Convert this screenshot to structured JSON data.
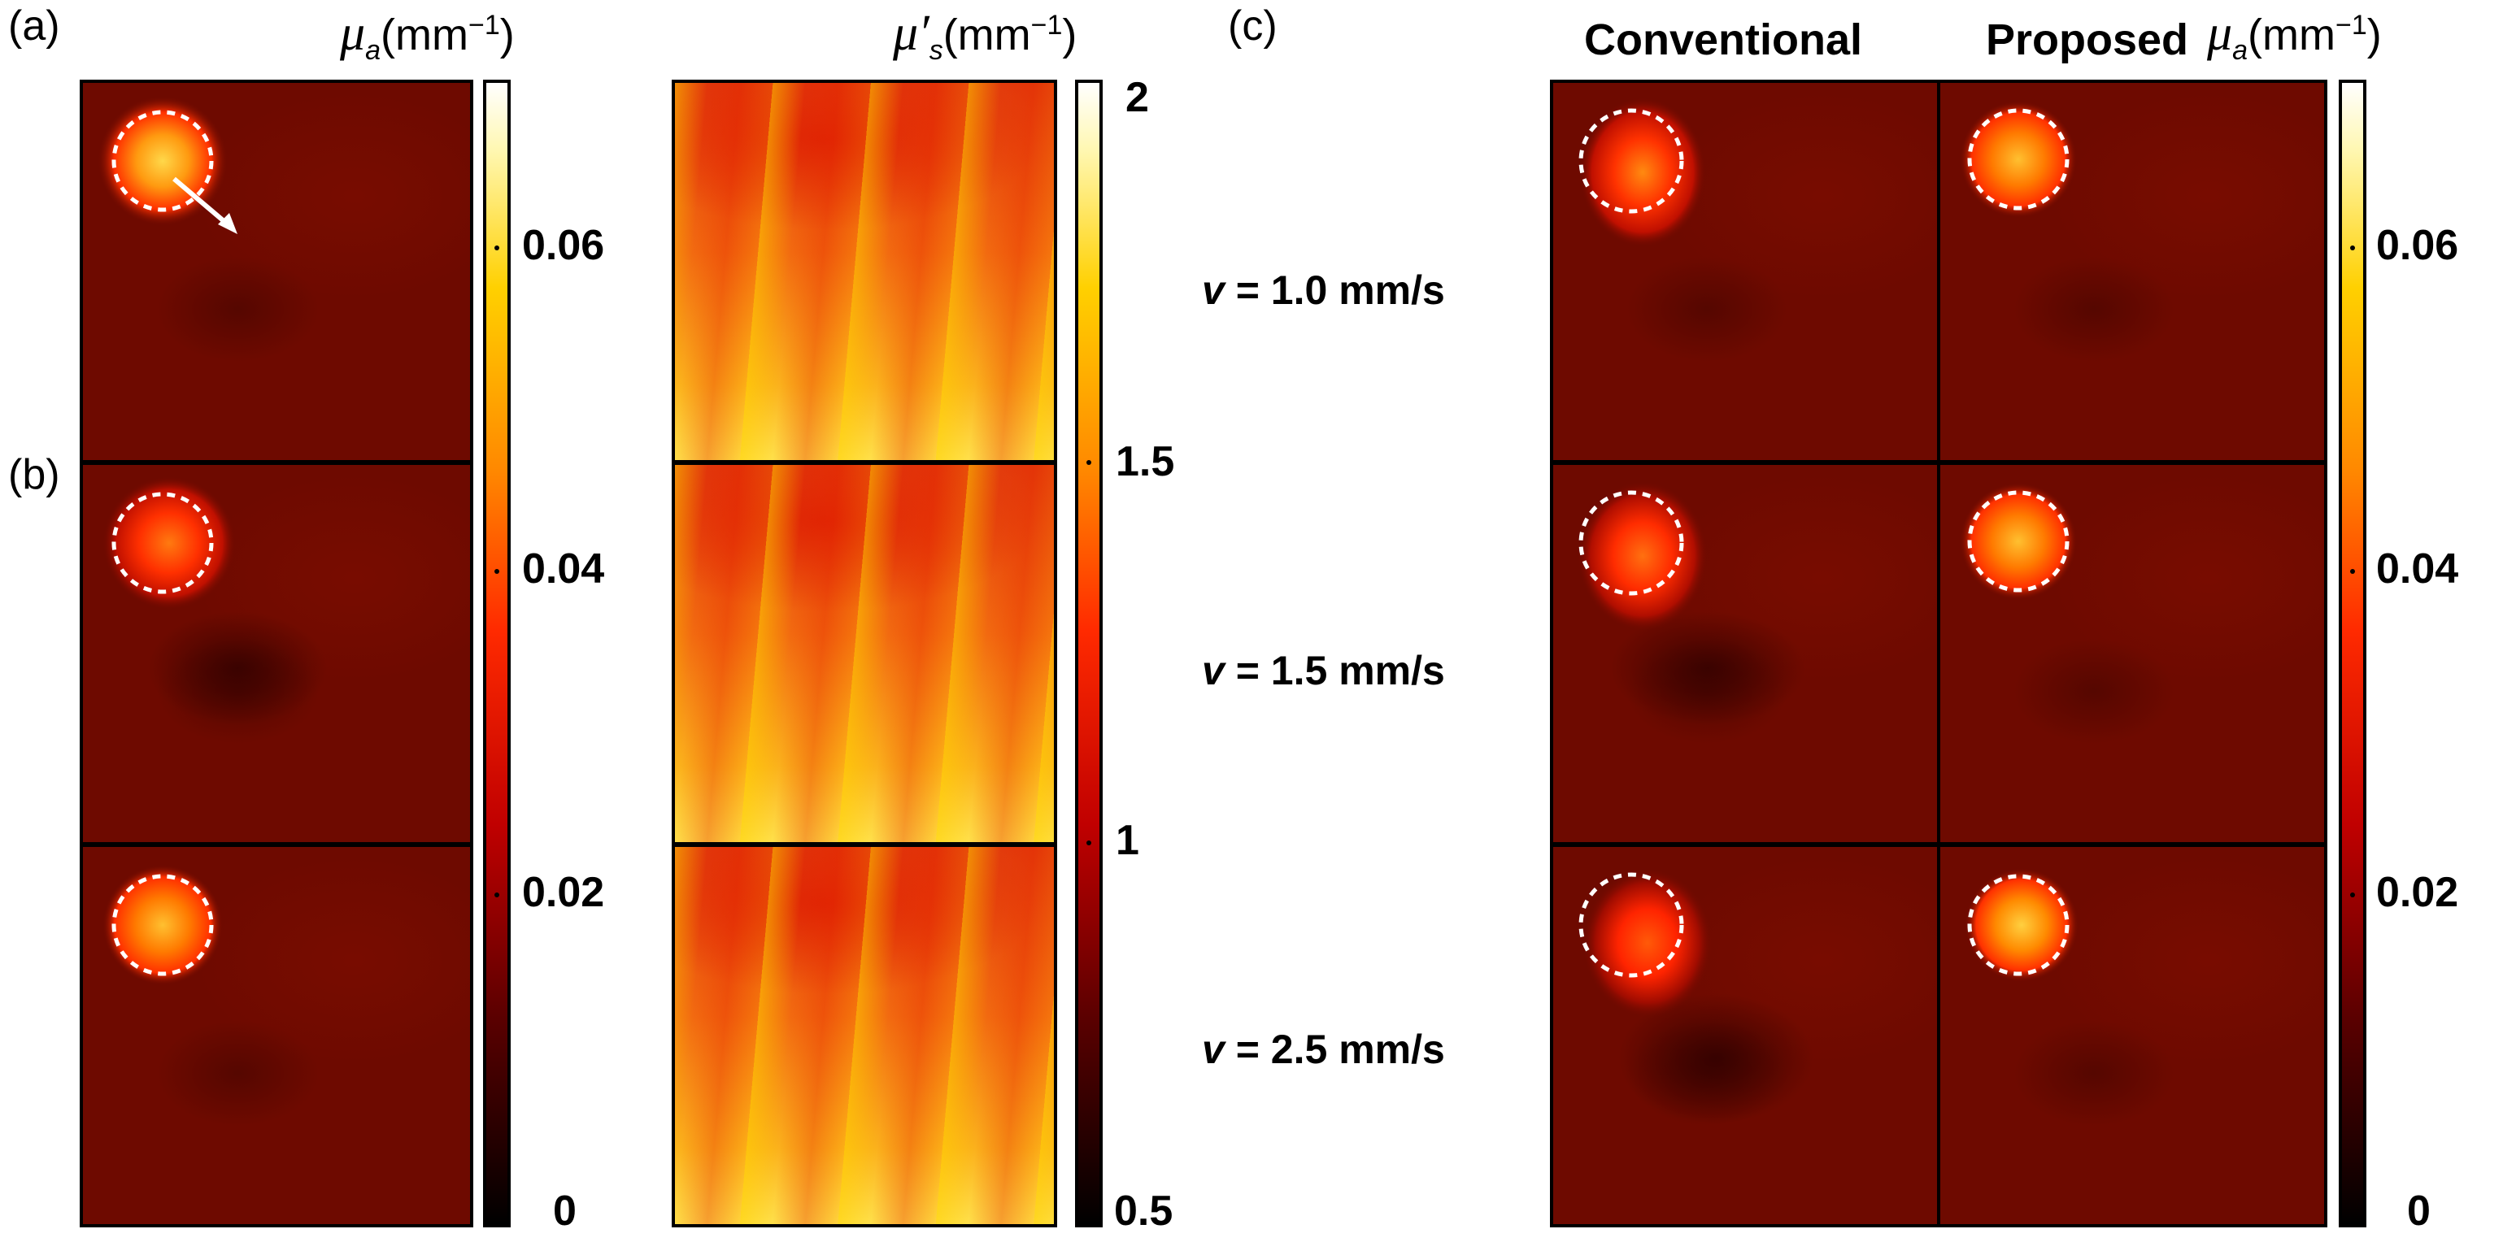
{
  "labels": {
    "a": "(a)",
    "b": "(b)",
    "c": "(c)"
  },
  "units": {
    "mua_symbol": "μ",
    "mua_sub": "a",
    "mus_symbol": "μ′",
    "mus_sub": "s",
    "unit_text": "(mm",
    "unit_exp": "−1",
    "unit_close": ")"
  },
  "colorbar_a": {
    "ticks": [
      "0.06",
      "0.04",
      "0.02",
      "0"
    ],
    "tick_values": [
      0.06,
      0.04,
      0.02,
      0
    ],
    "range": [
      0,
      0.07
    ]
  },
  "colorbar_ms": {
    "ticks": [
      "2",
      "1.5",
      "1",
      "0.5"
    ],
    "tick_values": [
      2,
      1.5,
      1,
      0.5
    ],
    "range": [
      0.5,
      2
    ]
  },
  "colorbar_c": {
    "ticks": [
      "0.06",
      "0.04",
      "0.02",
      "0"
    ],
    "tick_values": [
      0.06,
      0.04,
      0.02,
      0
    ],
    "range": [
      0,
      0.07
    ]
  },
  "columns": {
    "conventional": "Conventional",
    "proposed": "Proposed"
  },
  "velocities": [
    {
      "prefix": "v",
      "text": " = 1.0 mm/s"
    },
    {
      "prefix": "v",
      "text": " = 1.5 mm/s"
    },
    {
      "prefix": "v",
      "text": " = 2.5 mm/s"
    }
  ],
  "colors": {
    "inclusion_marker": "#ffffff",
    "background_mua": "#6e0a00"
  }
}
